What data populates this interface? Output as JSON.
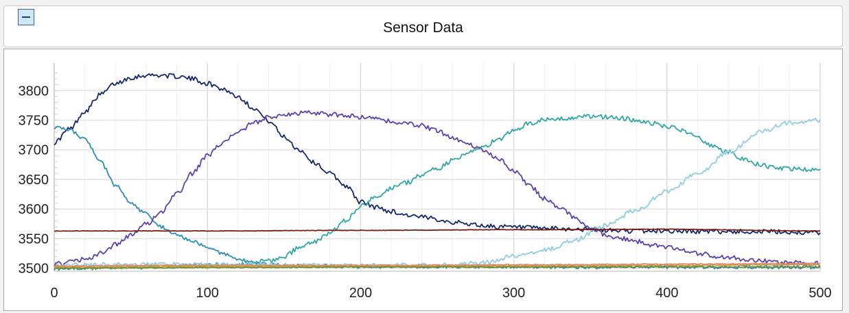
{
  "header": {
    "title": "Sensor Data",
    "collapse_icon": "minus-icon"
  },
  "chart_data": {
    "type": "line",
    "title": "Sensor Data",
    "xlabel": "",
    "ylabel": "",
    "xlim": [
      0,
      500
    ],
    "ylim": [
      3495,
      3835
    ],
    "x_ticks": [
      0,
      100,
      200,
      300,
      400,
      500
    ],
    "y_ticks": [
      3500,
      3550,
      3600,
      3650,
      3700,
      3750,
      3800
    ],
    "x_tick_labels": [
      "0",
      "100",
      "200",
      "300",
      "400",
      "500"
    ],
    "y_tick_labels": [
      "3500",
      "3550",
      "3600",
      "3650",
      "3700",
      "3750",
      "3800"
    ],
    "grid": true,
    "legend": "none",
    "series": [
      {
        "color": "#13266b",
        "noise": 4,
        "x": [
          0,
          10,
          20,
          30,
          40,
          50,
          60,
          70,
          80,
          90,
          100,
          110,
          120,
          130,
          140,
          150,
          160,
          170,
          180,
          190,
          200,
          210,
          220,
          230,
          240,
          250,
          260,
          270,
          280,
          290,
          300,
          320,
          340,
          360,
          380,
          400,
          420,
          440,
          460,
          480,
          500
        ],
        "y": [
          3712,
          3735,
          3765,
          3793,
          3812,
          3822,
          3826,
          3826,
          3824,
          3820,
          3812,
          3803,
          3790,
          3771,
          3749,
          3722,
          3700,
          3678,
          3660,
          3640,
          3612,
          3603,
          3596,
          3590,
          3586,
          3583,
          3578,
          3575,
          3572,
          3570,
          3569,
          3567,
          3566,
          3564,
          3563,
          3563,
          3562,
          3562,
          3562,
          3561,
          3560
        ]
      },
      {
        "color": "#2a8dbb",
        "noise": 3,
        "x": [
          0,
          10,
          20,
          30,
          40,
          50,
          60,
          70,
          80,
          90,
          100,
          110,
          120,
          130,
          140,
          150,
          170,
          200,
          250,
          300,
          350,
          400,
          450,
          500
        ],
        "y": [
          3738,
          3733,
          3718,
          3680,
          3640,
          3610,
          3592,
          3570,
          3556,
          3545,
          3535,
          3525,
          3515,
          3509,
          3506,
          3505,
          3504,
          3503,
          3503,
          3503,
          3502,
          3502,
          3502,
          3502
        ]
      },
      {
        "color": "#5a3fb0",
        "noise": 4,
        "x": [
          0,
          10,
          20,
          30,
          40,
          50,
          60,
          70,
          80,
          90,
          100,
          110,
          120,
          130,
          140,
          150,
          160,
          170,
          180,
          190,
          200,
          210,
          220,
          230,
          240,
          250,
          260,
          270,
          280,
          290,
          300,
          310,
          320,
          330,
          340,
          350,
          360,
          370,
          380,
          390,
          400,
          420,
          440,
          460,
          480,
          500
        ],
        "y": [
          3507,
          3510,
          3515,
          3525,
          3540,
          3556,
          3575,
          3595,
          3625,
          3660,
          3690,
          3712,
          3730,
          3745,
          3755,
          3760,
          3762,
          3762,
          3760,
          3758,
          3755,
          3752,
          3748,
          3745,
          3741,
          3732,
          3720,
          3710,
          3700,
          3686,
          3665,
          3640,
          3618,
          3603,
          3585,
          3568,
          3556,
          3550,
          3545,
          3540,
          3535,
          3525,
          3518,
          3513,
          3510,
          3508
        ]
      },
      {
        "color": "#2fa6a6",
        "noise": 4,
        "x": [
          0,
          50,
          100,
          120,
          140,
          150,
          160,
          170,
          180,
          190,
          200,
          210,
          220,
          230,
          240,
          250,
          260,
          270,
          280,
          290,
          300,
          310,
          320,
          330,
          340,
          350,
          360,
          370,
          380,
          390,
          400,
          410,
          420,
          430,
          440,
          450,
          460,
          470,
          480,
          490,
          500
        ],
        "y": [
          3500,
          3502,
          3505,
          3507,
          3512,
          3520,
          3535,
          3545,
          3560,
          3580,
          3605,
          3620,
          3635,
          3645,
          3658,
          3668,
          3682,
          3695,
          3705,
          3718,
          3732,
          3745,
          3750,
          3753,
          3755,
          3757,
          3755,
          3754,
          3750,
          3745,
          3740,
          3733,
          3720,
          3706,
          3696,
          3685,
          3675,
          3670,
          3668,
          3666,
          3665
        ]
      },
      {
        "color": "#8fcde3",
        "noise": 4,
        "x": [
          0,
          100,
          200,
          250,
          280,
          300,
          320,
          340,
          360,
          380,
          400,
          420,
          440,
          460,
          480,
          500
        ],
        "y": [
          3506,
          3506,
          3504,
          3505,
          3509,
          3520,
          3530,
          3548,
          3573,
          3598,
          3630,
          3660,
          3695,
          3730,
          3746,
          3750
        ]
      },
      {
        "color": "#7a1a10",
        "noise": 0.4,
        "x": [
          0,
          100,
          200,
          300,
          400,
          500
        ],
        "y": [
          3563,
          3563,
          3564,
          3565,
          3566,
          3563
        ]
      },
      {
        "color": "#c99b3a",
        "noise": 0.8,
        "x": [
          0,
          100,
          200,
          300,
          400,
          500
        ],
        "y": [
          3502,
          3503,
          3503,
          3504,
          3505,
          3506
        ]
      },
      {
        "color": "#e08a6a",
        "noise": 0.8,
        "x": [
          0,
          100,
          200,
          300,
          400,
          500
        ],
        "y": [
          3504,
          3505,
          3505,
          3506,
          3507,
          3508
        ]
      },
      {
        "color": "#6e8a2a",
        "noise": 0.8,
        "x": [
          0,
          100,
          200,
          300,
          400,
          500
        ],
        "y": [
          3500,
          3501,
          3502,
          3502,
          3502,
          3502
        ]
      }
    ]
  }
}
